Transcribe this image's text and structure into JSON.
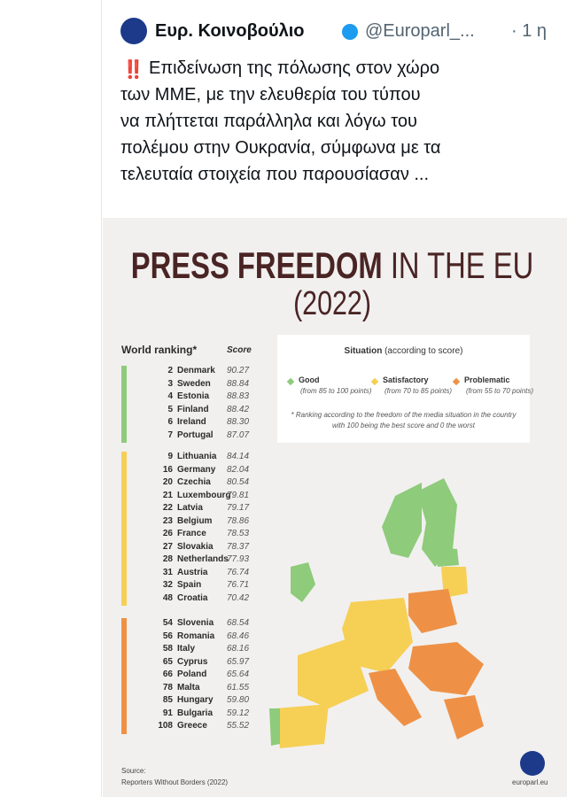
{
  "tweet": {
    "author": "Ευρ. Κοινοβούλιο",
    "handle": "@Europarl_...",
    "time": "· 1 η",
    "emoji": "‼️",
    "lines": [
      "Επιδείνωση της πόλωσης στον χώρο",
      "των ΜΜΕ, με την ελευθερία του τύπου",
      "να πλήττεται παράλληλα και λόγω του",
      "πολέμου στην Ουκρανία, σύμφωνα με τα",
      "τελευταία στοιχεία που παρουσίασαν ..."
    ]
  },
  "infographic": {
    "title": "PRESS FREEDOM",
    "title_rest": "IN THE EU",
    "year": "(2022)",
    "ranking_header": "World ranking*",
    "score_header": "Score",
    "groups": [
      {
        "color": "#8ecb7a",
        "rows": [
          [
            "2",
            "Denmark",
            "90.27"
          ],
          [
            "3",
            "Sweden",
            "88.84"
          ],
          [
            "4",
            "Estonia",
            "88.83"
          ],
          [
            "5",
            "Finland",
            "88.42"
          ],
          [
            "6",
            "Ireland",
            "88.30"
          ],
          [
            "7",
            "Portugal",
            "87.07"
          ]
        ]
      },
      {
        "color": "#f6cf55",
        "rows": [
          [
            "9",
            "Lithuania",
            "84.14"
          ],
          [
            "16",
            "Germany",
            "82.04"
          ],
          [
            "20",
            "Czechia",
            "80.54"
          ],
          [
            "21",
            "Luxembourg",
            "79.81"
          ],
          [
            "22",
            "Latvia",
            "79.17"
          ],
          [
            "23",
            "Belgium",
            "78.86"
          ],
          [
            "26",
            "France",
            "78.53"
          ],
          [
            "27",
            "Slovakia",
            "78.37"
          ],
          [
            "28",
            "Netherlands",
            "77.93"
          ],
          [
            "31",
            "Austria",
            "76.74"
          ],
          [
            "32",
            "Spain",
            "76.71"
          ],
          [
            "48",
            "Croatia",
            "70.42"
          ]
        ]
      },
      {
        "color": "#ee9146",
        "rows": [
          [
            "54",
            "Slovenia",
            "68.54"
          ],
          [
            "56",
            "Romania",
            "68.46"
          ],
          [
            "58",
            "Italy",
            "68.16"
          ],
          [
            "65",
            "Cyprus",
            "65.97"
          ],
          [
            "66",
            "Poland",
            "65.64"
          ],
          [
            "78",
            "Malta",
            "61.55"
          ],
          [
            "85",
            "Hungary",
            "59.80"
          ],
          [
            "91",
            "Bulgaria",
            "59.12"
          ],
          [
            "108",
            "Greece",
            "55.52"
          ]
        ]
      }
    ],
    "legend": {
      "title": "Situation",
      "subtitle": "(according to score)",
      "items": [
        {
          "label": "Good",
          "range": "(from 85 to 100 points)",
          "color": "#8ecb7a"
        },
        {
          "label": "Satisfactory",
          "range": "(from 70 to 85 points)",
          "color": "#f6cf55"
        },
        {
          "label": "Problematic",
          "range": "(from 55 to 70 points)",
          "color": "#ee9146"
        }
      ],
      "note": [
        "* Ranking according to the freedom of the media situation in the country",
        "with 100 being the best score and 0 the worst"
      ]
    },
    "source_label": "Source:",
    "source": "Reporters Without Borders (2022)",
    "site": "europarl.eu"
  }
}
